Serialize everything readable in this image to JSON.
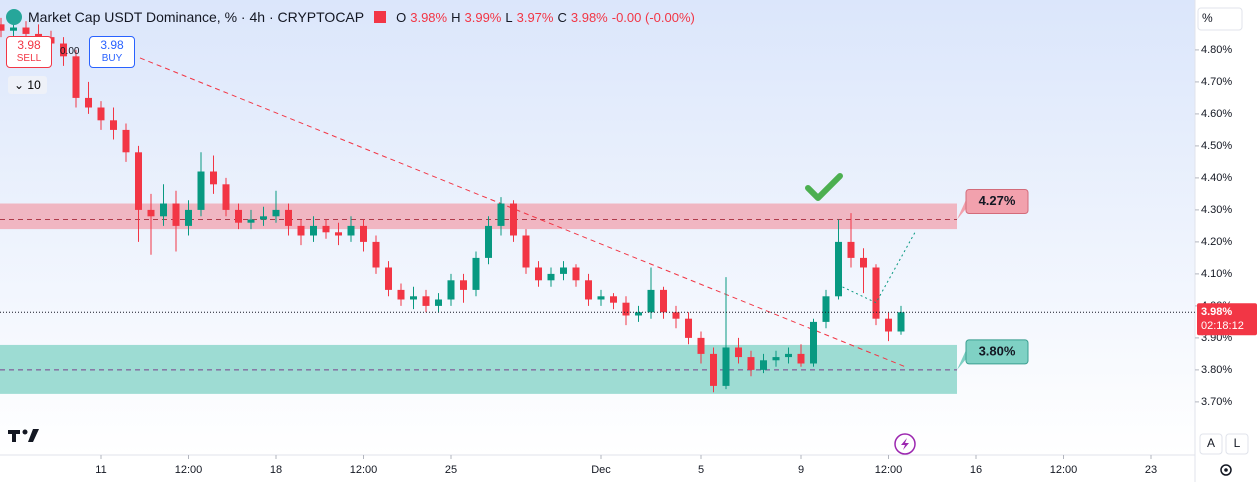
{
  "chart_data": {
    "type": "candlestick",
    "title": "Market Cap USDT Dominance, % · 4h · CRYPTOCAP",
    "legend": {
      "o_label": "O",
      "o": "3.98%",
      "h_label": "H",
      "h": "3.99%",
      "l_label": "L",
      "l": "3.97%",
      "c_label": "C",
      "c": "3.98%",
      "change": "-0.00 (-0.00%)"
    },
    "sell_price": "3.98",
    "sell_label": "SELL",
    "spread": "0.00",
    "buy_price": "3.98",
    "buy_label": "BUY",
    "indicator_count": "10",
    "axis_unit": "%",
    "current_price_label": "3.98%",
    "countdown": "02:18:12",
    "auto_button": "A",
    "log_button": "L",
    "up_color": "#089981",
    "down_color": "#f23645",
    "x": [
      -4,
      -3.5,
      -3,
      -2.5,
      -2,
      -1.5,
      -1,
      -0.5,
      0,
      0.5,
      1,
      1.5,
      2,
      2.5,
      3,
      3.5,
      4,
      4.5,
      5,
      5.5,
      6,
      6.5,
      7,
      7.5,
      8,
      8.5,
      9,
      9.5,
      10,
      10.5,
      11,
      11.5,
      12,
      12.5,
      13,
      13.5,
      14,
      14.5,
      15,
      15.5,
      16,
      16.5,
      17,
      17.5,
      18,
      18.5,
      19,
      19.5,
      20,
      20.5,
      21,
      21.5,
      22,
      22.5,
      23,
      23.5,
      24,
      24.5,
      25,
      25.5,
      26,
      26.5,
      27,
      27.5,
      28,
      28.5,
      29,
      29.5,
      30,
      30.5,
      31,
      31.5,
      32
    ],
    "ohlc": [
      [
        4.88,
        4.9,
        4.84,
        4.86
      ],
      [
        4.86,
        4.89,
        4.83,
        4.87
      ],
      [
        4.87,
        4.89,
        4.83,
        4.85
      ],
      [
        4.85,
        4.88,
        4.82,
        4.84
      ],
      [
        4.84,
        4.86,
        4.79,
        4.82
      ],
      [
        4.82,
        4.84,
        4.75,
        4.78
      ],
      [
        4.78,
        4.8,
        4.62,
        4.65
      ],
      [
        4.65,
        4.7,
        4.6,
        4.62
      ],
      [
        4.62,
        4.64,
        4.55,
        4.58
      ],
      [
        4.58,
        4.62,
        4.52,
        4.55
      ],
      [
        4.55,
        4.57,
        4.45,
        4.48
      ],
      [
        4.48,
        4.5,
        4.2,
        4.3
      ],
      [
        4.3,
        4.35,
        4.16,
        4.28
      ],
      [
        4.28,
        4.38,
        4.25,
        4.32
      ],
      [
        4.32,
        4.36,
        4.17,
        4.25
      ],
      [
        4.25,
        4.33,
        4.22,
        4.3
      ],
      [
        4.3,
        4.48,
        4.28,
        4.42
      ],
      [
        4.42,
        4.47,
        4.35,
        4.38
      ],
      [
        4.38,
        4.4,
        4.28,
        4.3
      ],
      [
        4.3,
        4.32,
        4.24,
        4.26
      ],
      [
        4.26,
        4.3,
        4.24,
        4.27
      ],
      [
        4.27,
        4.31,
        4.25,
        4.28
      ],
      [
        4.28,
        4.36,
        4.26,
        4.3
      ],
      [
        4.3,
        4.32,
        4.22,
        4.25
      ],
      [
        4.25,
        4.27,
        4.19,
        4.22
      ],
      [
        4.22,
        4.28,
        4.2,
        4.25
      ],
      [
        4.25,
        4.27,
        4.21,
        4.23
      ],
      [
        4.23,
        4.26,
        4.19,
        4.22
      ],
      [
        4.22,
        4.28,
        4.2,
        4.25
      ],
      [
        4.25,
        4.27,
        4.17,
        4.2
      ],
      [
        4.2,
        4.22,
        4.1,
        4.12
      ],
      [
        4.12,
        4.14,
        4.03,
        4.05
      ],
      [
        4.05,
        4.07,
        4.0,
        4.02
      ],
      [
        4.02,
        4.06,
        3.99,
        4.03
      ],
      [
        4.03,
        4.05,
        3.98,
        4.0
      ],
      [
        4.0,
        4.04,
        3.98,
        4.02
      ],
      [
        4.02,
        4.1,
        4.0,
        4.08
      ],
      [
        4.08,
        4.1,
        4.01,
        4.05
      ],
      [
        4.05,
        4.17,
        4.03,
        4.15
      ],
      [
        4.15,
        4.28,
        4.13,
        4.25
      ],
      [
        4.25,
        4.34,
        4.22,
        4.32
      ],
      [
        4.32,
        4.33,
        4.2,
        4.22
      ],
      [
        4.22,
        4.24,
        4.1,
        4.12
      ],
      [
        4.12,
        4.14,
        4.06,
        4.08
      ],
      [
        4.08,
        4.12,
        4.06,
        4.1
      ],
      [
        4.1,
        4.14,
        4.08,
        4.12
      ],
      [
        4.12,
        4.13,
        4.06,
        4.08
      ],
      [
        4.08,
        4.1,
        4.0,
        4.02
      ],
      [
        4.02,
        4.05,
        4.0,
        4.03
      ],
      [
        4.03,
        4.04,
        3.99,
        4.01
      ],
      [
        4.01,
        4.03,
        3.94,
        3.97
      ],
      [
        3.97,
        4.0,
        3.95,
        3.98
      ],
      [
        3.98,
        4.12,
        3.96,
        4.05
      ],
      [
        4.05,
        4.06,
        3.96,
        3.98
      ],
      [
        3.98,
        4.0,
        3.93,
        3.96
      ],
      [
        3.96,
        3.98,
        3.88,
        3.9
      ],
      [
        3.9,
        3.92,
        3.82,
        3.85
      ],
      [
        3.85,
        3.87,
        3.73,
        3.75
      ],
      [
        3.75,
        4.09,
        3.74,
        3.87
      ],
      [
        3.87,
        3.9,
        3.82,
        3.84
      ],
      [
        3.84,
        3.86,
        3.78,
        3.8
      ],
      [
        3.8,
        3.85,
        3.79,
        3.83
      ],
      [
        3.83,
        3.86,
        3.81,
        3.84
      ],
      [
        3.84,
        3.87,
        3.82,
        3.85
      ],
      [
        3.85,
        3.88,
        3.81,
        3.82
      ],
      [
        3.82,
        3.96,
        3.81,
        3.95
      ],
      [
        3.95,
        4.05,
        3.93,
        4.03
      ],
      [
        4.03,
        4.27,
        4.02,
        4.2
      ],
      [
        4.2,
        4.29,
        4.12,
        4.15
      ],
      [
        4.15,
        4.18,
        4.04,
        4.12
      ],
      [
        4.12,
        4.13,
        3.94,
        3.96
      ],
      [
        3.96,
        3.98,
        3.89,
        3.92
      ],
      [
        3.92,
        4.0,
        3.91,
        3.98
      ]
    ],
    "xlim": [
      -4.04,
      43.76
    ],
    "xticks": [
      {
        "value": 0,
        "label": "11"
      },
      {
        "value": 3.5,
        "label": "12:00"
      },
      {
        "value": 7,
        "label": "18"
      },
      {
        "value": 10.5,
        "label": "12:00"
      },
      {
        "value": 14,
        "label": "25"
      },
      {
        "value": 20,
        "label": "Dec"
      },
      {
        "value": 24,
        "label": "5"
      },
      {
        "value": 28,
        "label": "9"
      },
      {
        "value": 31.5,
        "label": "12:00"
      },
      {
        "value": 35,
        "label": "16"
      },
      {
        "value": 38.5,
        "label": "12:00"
      },
      {
        "value": 42,
        "label": "23"
      }
    ],
    "ylim": [
      3.534,
      4.956
    ],
    "yticks": [
      {
        "value": 3.7,
        "label": "3.70%"
      },
      {
        "value": 3.8,
        "label": "3.80%"
      },
      {
        "value": 3.9,
        "label": "3.90%"
      },
      {
        "value": 4.0,
        "label": "4.00%"
      },
      {
        "value": 4.1,
        "label": "4.10%"
      },
      {
        "value": 4.2,
        "label": "4.20%"
      },
      {
        "value": 4.3,
        "label": "4.30%"
      },
      {
        "value": 4.4,
        "label": "4.40%"
      },
      {
        "value": 4.5,
        "label": "4.50%"
      },
      {
        "value": 4.6,
        "label": "4.60%"
      },
      {
        "value": 4.7,
        "label": "4.70%"
      },
      {
        "value": 4.8,
        "label": "4.80%"
      }
    ],
    "current_price": 3.98,
    "zones": [
      {
        "low": 4.24,
        "high": 4.32,
        "level": 4.27,
        "label": "4.27%",
        "color": "#f2a1ad"
      },
      {
        "low": 3.725,
        "high": 3.878,
        "level": 3.8,
        "label": "3.80%",
        "color": "#7fd1c4"
      }
    ],
    "zone_end": 34.24,
    "trendline": {
      "x": [
        1.56,
        32.16
      ],
      "values": [
        4.775,
        3.81
      ]
    },
    "projection": {
      "x": [
        29.48,
        31.0,
        32.56
      ],
      "values": [
        4.066,
        4.01,
        4.23
      ]
    }
  }
}
